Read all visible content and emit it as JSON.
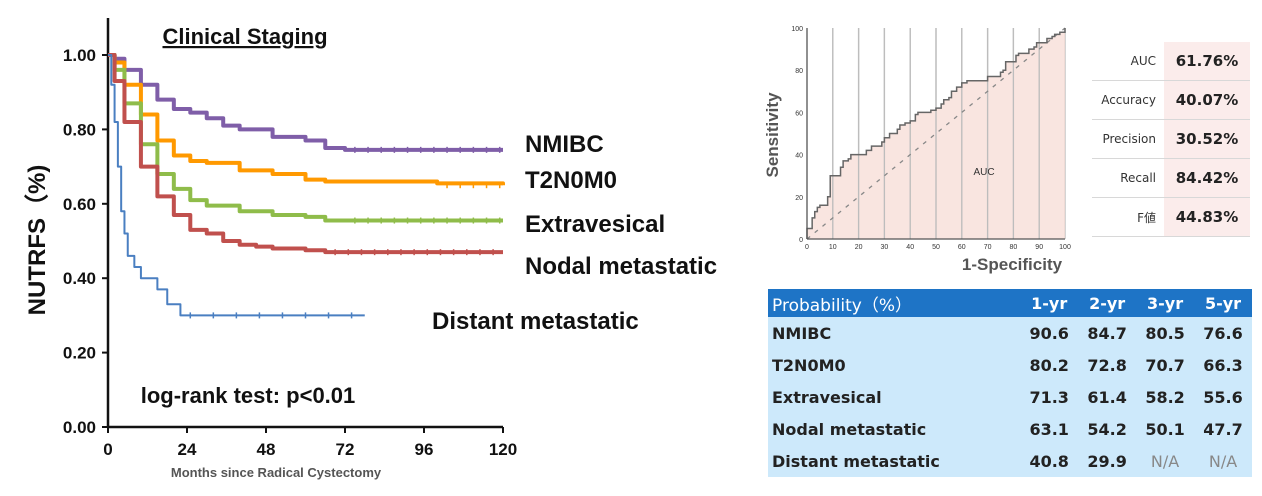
{
  "chart_data": [
    {
      "type": "line",
      "subtype": "kaplan-meier",
      "title": "Clinical Staging",
      "xlabel": "Months since Radical Cystectomy",
      "ylabel": "NUTRFS（%)",
      "xlim": [
        0,
        120
      ],
      "ylim": [
        0,
        1.0
      ],
      "xticks": [
        "0",
        "24",
        "48",
        "72",
        "96",
        "120"
      ],
      "yticks": [
        "0.00",
        "0.20",
        "0.40",
        "0.60",
        "0.80",
        "1.00"
      ],
      "annotation": "log-rank test: p<0.01",
      "legend_placement": "right",
      "series": [
        {
          "name": "NMIBC",
          "color": "#7f5ea8",
          "x": [
            0,
            2,
            5,
            10,
            15,
            20,
            25,
            30,
            35,
            40,
            50,
            60,
            66,
            72,
            120
          ],
          "y": [
            1.0,
            0.99,
            0.96,
            0.92,
            0.88,
            0.855,
            0.845,
            0.83,
            0.81,
            0.8,
            0.78,
            0.77,
            0.75,
            0.745,
            0.745
          ]
        },
        {
          "name": "T2N0M0",
          "color": "#ff9900",
          "x": [
            0,
            2,
            5,
            10,
            15,
            20,
            25,
            30,
            40,
            50,
            60,
            66,
            72,
            100,
            120
          ],
          "y": [
            1.0,
            0.98,
            0.92,
            0.84,
            0.77,
            0.73,
            0.715,
            0.71,
            0.69,
            0.68,
            0.665,
            0.66,
            0.66,
            0.655,
            0.65
          ]
        },
        {
          "name": "Extravesical",
          "color": "#8fbc4a",
          "x": [
            0,
            2,
            5,
            10,
            15,
            20,
            25,
            30,
            40,
            50,
            60,
            66,
            72,
            120
          ],
          "y": [
            1.0,
            0.96,
            0.87,
            0.76,
            0.68,
            0.64,
            0.61,
            0.595,
            0.58,
            0.57,
            0.565,
            0.555,
            0.555,
            0.555
          ]
        },
        {
          "name": "Nodal metastatic",
          "color": "#c0504d",
          "x": [
            0,
            2,
            5,
            10,
            15,
            20,
            25,
            30,
            35,
            40,
            45,
            50,
            60,
            66,
            120
          ],
          "y": [
            1.0,
            0.93,
            0.82,
            0.7,
            0.62,
            0.57,
            0.53,
            0.52,
            0.5,
            0.49,
            0.485,
            0.48,
            0.475,
            0.47,
            0.47
          ]
        },
        {
          "name": "Distant metastatic",
          "color": "#4a7fc1",
          "x": [
            0,
            1,
            2,
            3,
            4,
            5,
            6,
            8,
            10,
            12,
            15,
            18,
            21,
            22,
            78
          ],
          "y": [
            1.0,
            0.92,
            0.82,
            0.7,
            0.58,
            0.52,
            0.46,
            0.43,
            0.4,
            0.4,
            0.37,
            0.33,
            0.33,
            0.3,
            0.3
          ]
        }
      ]
    },
    {
      "type": "line",
      "subtype": "roc",
      "xlabel": "1-Specificity",
      "ylabel": "Sensitivity",
      "xlim": [
        0,
        100
      ],
      "ylim": [
        0,
        100
      ],
      "xticks": [
        "0",
        "10",
        "20",
        "30",
        "40",
        "50",
        "60",
        "70",
        "80",
        "90",
        "100"
      ],
      "yticks": [
        "0",
        "20",
        "40",
        "60",
        "80",
        "100"
      ],
      "annotation": "AUC",
      "grid": "vertical",
      "series": [
        {
          "name": "ROC",
          "color": "#666666",
          "x": [
            0,
            0,
            2,
            2,
            3,
            4,
            5,
            7,
            8,
            9,
            9,
            13,
            13,
            14,
            16,
            17,
            22,
            23,
            25,
            27,
            29,
            30,
            32,
            33,
            35,
            36,
            38,
            40,
            42,
            43,
            47,
            48,
            50,
            52,
            53,
            55,
            56,
            58,
            60,
            62,
            67,
            70,
            73,
            75,
            76,
            77,
            80,
            81,
            82,
            85,
            86,
            88,
            89,
            91,
            93,
            94,
            95,
            96,
            98,
            100
          ],
          "y": [
            0,
            5,
            5,
            10,
            13,
            15,
            16,
            16,
            20,
            24,
            30,
            30,
            34,
            37,
            38,
            40,
            40,
            42,
            44,
            44,
            46,
            48,
            50,
            50,
            52,
            54,
            55,
            56,
            59,
            60,
            60,
            61,
            62,
            64,
            66,
            67,
            70,
            72,
            74,
            75,
            75,
            77,
            77,
            79,
            80,
            84,
            84,
            87,
            88,
            88,
            90,
            91,
            93,
            93,
            95,
            95,
            96,
            97,
            98,
            100
          ]
        },
        {
          "name": "Chance",
          "color": "#888888",
          "style": "dashed",
          "x": [
            0,
            100
          ],
          "y": [
            0,
            100
          ]
        }
      ]
    },
    {
      "type": "table",
      "name": "metrics",
      "rows": [
        {
          "label": "AUC",
          "value": "61.76%"
        },
        {
          "label": "Accuracy",
          "value": "40.07%"
        },
        {
          "label": "Precision",
          "value": "30.52%"
        },
        {
          "label": "Recall",
          "value": "84.42%"
        },
        {
          "label": "F値",
          "value": "44.83%"
        }
      ]
    },
    {
      "type": "table",
      "name": "probability",
      "header": [
        "Probability（%）",
        "1-yr",
        "2-yr",
        "3-yr",
        "5-yr"
      ],
      "rows": [
        [
          "NMIBC",
          "90.6",
          "84.7",
          "80.5",
          "76.6"
        ],
        [
          "T2N0M0",
          "80.2",
          "72.8",
          "70.7",
          "66.3"
        ],
        [
          "Extravesical",
          "71.3",
          "61.4",
          "58.2",
          "55.6"
        ],
        [
          "Nodal metastatic",
          "63.1",
          "54.2",
          "50.1",
          "47.7"
        ],
        [
          "Distant metastatic",
          "40.8",
          "29.9",
          "N/A",
          "N/A"
        ]
      ]
    }
  ]
}
